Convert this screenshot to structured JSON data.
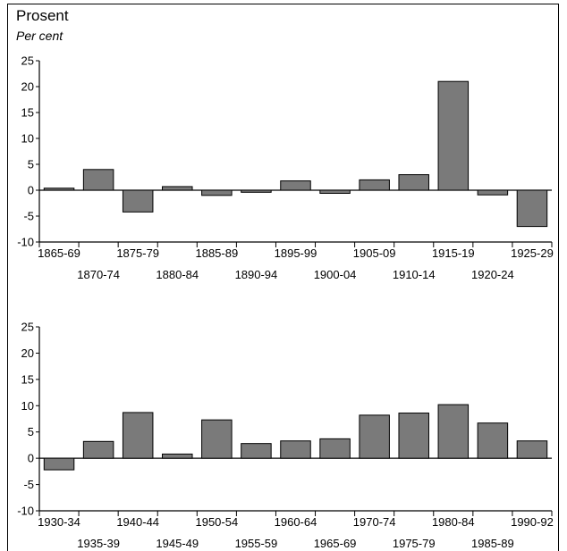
{
  "header": {
    "ylabel": "Prosent",
    "ylabel_sub": "Per cent"
  },
  "colors": {
    "bar_fill": "#7a7a7a",
    "bar_stroke": "#000000",
    "axis": "#000000"
  },
  "chart_data": [
    {
      "type": "bar",
      "ylim": [
        -10,
        25
      ],
      "yticks": [
        -10,
        -5,
        0,
        5,
        10,
        15,
        20,
        25
      ],
      "categories": [
        "1865-69",
        "1870-74",
        "1875-79",
        "1880-84",
        "1885-89",
        "1890-94",
        "1895-99",
        "1900-04",
        "1905-09",
        "1910-14",
        "1915-19",
        "1920-24",
        "1925-29"
      ],
      "values": [
        0.4,
        4.0,
        -4.2,
        0.7,
        -1.0,
        -0.4,
        1.8,
        -0.6,
        2.0,
        3.0,
        21.0,
        -0.9,
        -7.0
      ]
    },
    {
      "type": "bar",
      "ylim": [
        -10,
        25
      ],
      "yticks": [
        -10,
        -5,
        0,
        5,
        10,
        15,
        20,
        25
      ],
      "categories": [
        "1930-34",
        "1935-39",
        "1940-44",
        "1945-49",
        "1950-54",
        "1955-59",
        "1960-64",
        "1965-69",
        "1970-74",
        "1975-79",
        "1980-84",
        "1985-89",
        "1990-92"
      ],
      "values": [
        -2.2,
        3.2,
        8.7,
        0.8,
        7.3,
        2.8,
        3.3,
        3.7,
        8.2,
        8.6,
        10.2,
        6.7,
        3.3
      ]
    }
  ]
}
